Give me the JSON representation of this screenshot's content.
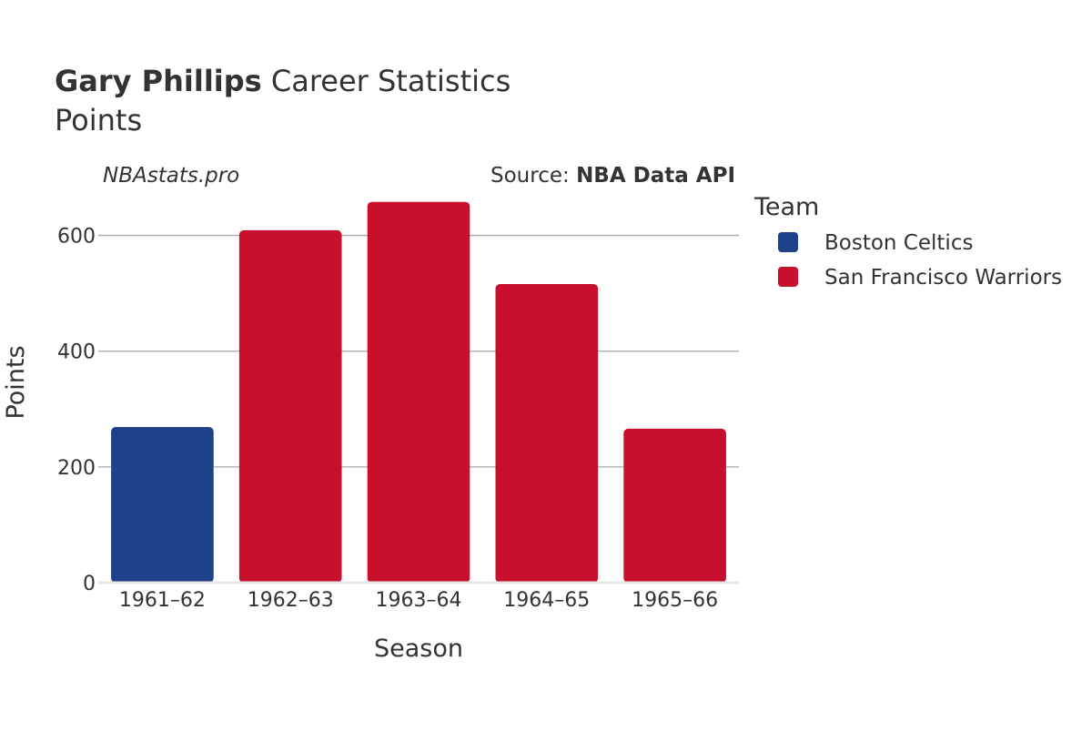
{
  "chart_data": {
    "type": "bar",
    "title": {
      "player": "Gary Phillips",
      "rest": " Career Statistics"
    },
    "subtitle": "Points",
    "watermark": "NBAstats.pro",
    "source": {
      "prefix": "Source: ",
      "name": "NBA Data API"
    },
    "xlabel": "Season",
    "ylabel": "Points",
    "ylim": [
      0,
      700
    ],
    "yticks": [
      0,
      200,
      400,
      600
    ],
    "grid": true,
    "legend": {
      "title": "Team",
      "placement": "right",
      "entries": [
        {
          "name": "Boston Celtics",
          "color": "#1D428A"
        },
        {
          "name": "San Francisco Warriors",
          "color": "#C8102E"
        }
      ]
    },
    "categories": [
      "1961–62",
      "1962–63",
      "1963–64",
      "1964–65",
      "1965–66"
    ],
    "values": [
      269,
      609,
      658,
      516,
      266
    ],
    "teams": [
      "Boston Celtics",
      "San Francisco Warriors",
      "San Francisco Warriors",
      "San Francisco Warriors",
      "San Francisco Warriors"
    ]
  }
}
